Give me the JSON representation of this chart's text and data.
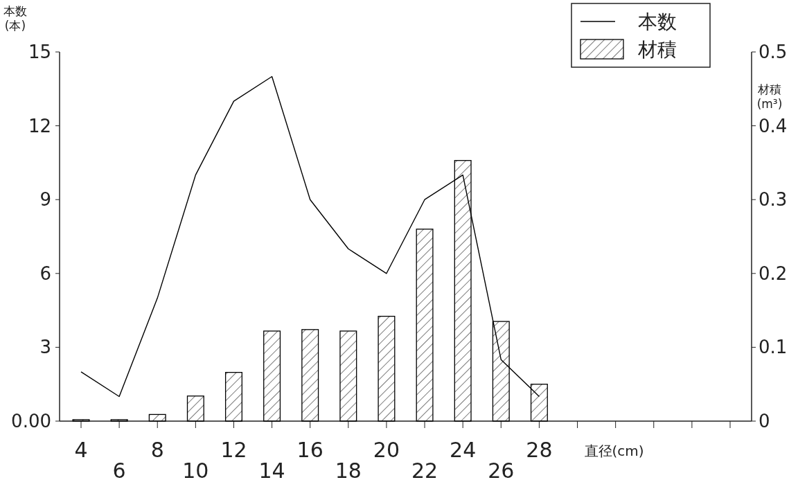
{
  "chart_data": {
    "type": "bar",
    "xlabel": "直径(cm)",
    "ylabel": "本数\n(本)",
    "y2label": "材積\n(m³)",
    "categories": [
      "4",
      "6",
      "8",
      "10",
      "12",
      "14",
      "16",
      "18",
      "20",
      "22",
      "24",
      "26",
      "28",
      null,
      null,
      null,
      null,
      null
    ],
    "series": [
      {
        "name": "本数",
        "type": "line",
        "color": "#000000",
        "axis": "y",
        "values": [
          2,
          1,
          5,
          10,
          13,
          14,
          9,
          7,
          6,
          9,
          10,
          2.5,
          1,
          null,
          null,
          null,
          null,
          null
        ]
      },
      {
        "name": "材積",
        "color": "#000000",
        "axis": "y2",
        "values": [
          0.002,
          0.002,
          0.009,
          0.034,
          0.066,
          0.122,
          0.124,
          0.122,
          0.142,
          0.26,
          0.353,
          0.135,
          0.05,
          null,
          null,
          null,
          null,
          null
        ]
      }
    ],
    "ylim": [
      0,
      15
    ],
    "yticks": [
      {
        "value": 0,
        "label": "0.00"
      },
      3,
      6,
      9,
      12,
      15
    ],
    "y2lim": [
      0,
      0.5
    ],
    "y2ticks": [
      0,
      0.1,
      0.2,
      0.3,
      0.4,
      0.5
    ],
    "legend": "top right"
  }
}
